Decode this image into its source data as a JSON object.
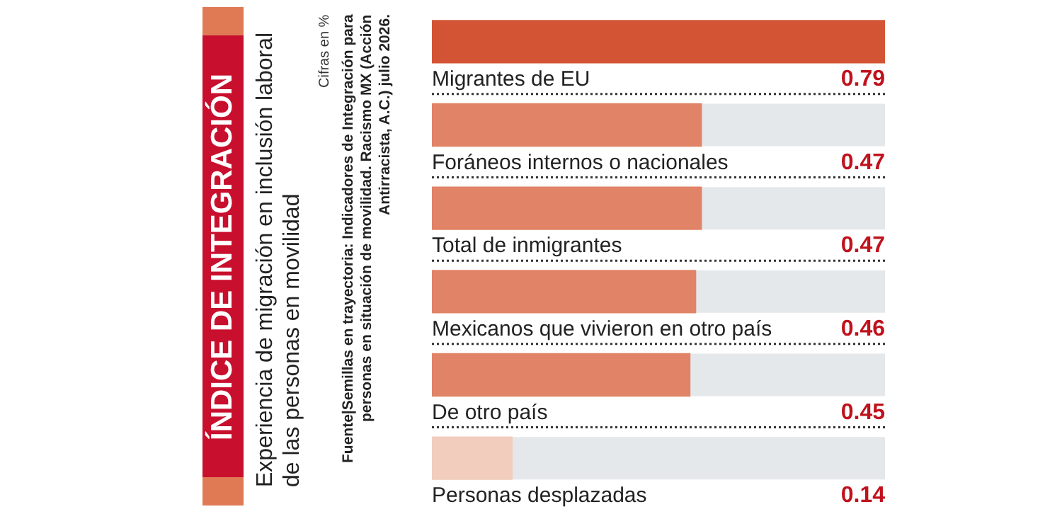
{
  "chart_data": {
    "type": "bar",
    "orientation": "horizontal",
    "title": "ÍNDICE DE INTEGRACIÓN",
    "subtitle": "Experiencia de migración en inclusión laboral de las personas en movilidad",
    "annotations": [
      "Cifras en %",
      "Fuente|Semillas en trayectoria: Indicadores de Integración para personas en situación de movilidad. Racismo MX (Acción Antirracista, A.C.) julio 2026."
    ],
    "categories": [
      "Migrantes de EU",
      "Foráneos internos o nacionales",
      "Total de inmigrantes",
      "Mexicanos que vivieron en otro país",
      "De otro país",
      "Personas desplazadas"
    ],
    "values": [
      0.79,
      0.47,
      0.47,
      0.46,
      0.45,
      0.14
    ],
    "colors": [
      "#d35435",
      "#e08366",
      "#e08366",
      "#e08366",
      "#e08366",
      "#f2cdbd"
    ],
    "xlim": [
      0,
      0.79
    ],
    "data_labels": true,
    "legend": false
  }
}
